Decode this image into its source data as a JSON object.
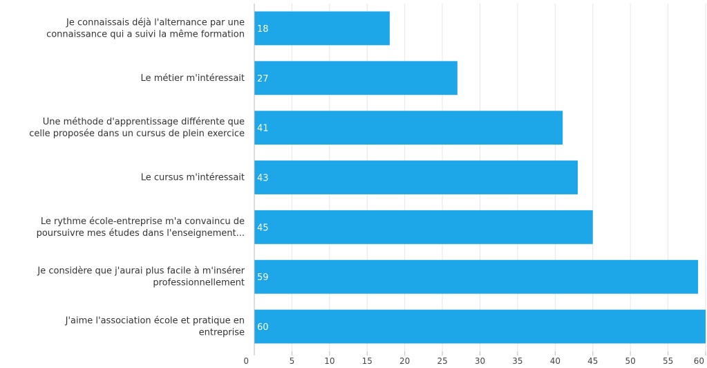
{
  "chart_data": {
    "type": "bar",
    "orientation": "horizontal",
    "categories": [
      [
        "Je connaissais déjà l'alternance par une",
        "connaissance qui a suivi la même formation"
      ],
      [
        "Le métier m'intéressait"
      ],
      [
        "Une méthode d'apprentissage différente que",
        "celle proposée dans un cursus de plein exercice"
      ],
      [
        "Le cursus m'intéressait"
      ],
      [
        "Le rythme école-entreprise m'a convaincu de",
        "poursuivre mes études dans l'enseignement..."
      ],
      [
        "Je considère que j'aurai plus facile à m'insérer",
        "professionnellement"
      ],
      [
        "J'aime l'association école et pratique en",
        "entreprise"
      ]
    ],
    "values": [
      18,
      27,
      41,
      43,
      45,
      59,
      60
    ],
    "xlim": [
      0,
      60
    ],
    "ticks": [
      0,
      5,
      10,
      15,
      20,
      25,
      30,
      35,
      40,
      45,
      50,
      55,
      60
    ],
    "grid": true,
    "data_labels": true,
    "colors": {
      "bar": "#1ea7e8",
      "grid": "#e6e6e6",
      "axis": "#bbbbbb"
    }
  }
}
